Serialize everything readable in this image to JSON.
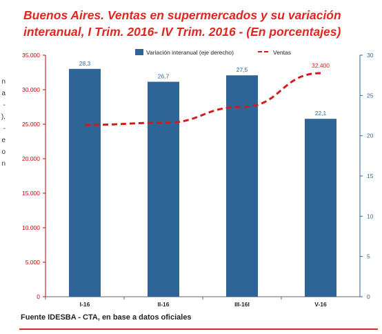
{
  "title": {
    "line1": "Buenos Aires. Ventas en supermercados y su variación",
    "line2": "interanual, I Trim. 2016- IV Trim. 2016 - (En porcentajes)"
  },
  "side_text_fragments": [
    "n",
    "a",
    "-",
    "),",
    "-",
    "e",
    "o",
    "n"
  ],
  "source": "Fuente IDESBA - CTA, en base a datos oficiales",
  "colors": {
    "title": "#e0261f",
    "bars": "#2e6596",
    "ventas_line": "#d7191c",
    "left_axis": "#cc0000",
    "right_axis": "#2e6596",
    "rule": "#e0261f"
  },
  "chart_data": {
    "type": "bar",
    "categories": [
      "I-16",
      "II-16",
      "III-16I",
      "V-16"
    ],
    "series": [
      {
        "name": "Variación interanual (eje derecho)",
        "type": "bar",
        "axis": "right",
        "values": [
          28.3,
          26.7,
          27.5,
          22.1
        ],
        "labels": [
          "28,3",
          "26,7",
          "27,5",
          "22,1"
        ]
      },
      {
        "name": "Ventas",
        "type": "line",
        "style": "dashed",
        "axis": "left",
        "values": [
          24900,
          25200,
          27500,
          32400
        ],
        "labels": [
          "",
          "",
          "",
          "32.400"
        ]
      }
    ],
    "left_axis": {
      "range": [
        0,
        35000
      ],
      "ticks": [
        0,
        5000,
        10000,
        15000,
        20000,
        25000,
        30000,
        35000
      ],
      "tick_labels": [
        "0",
        "5.000",
        "10.000",
        "15.000",
        "20.000",
        "25.000",
        "30.000",
        "35.000"
      ]
    },
    "right_axis": {
      "range": [
        0,
        30
      ],
      "ticks": [
        0,
        5,
        10,
        15,
        20,
        25,
        30
      ],
      "tick_labels": [
        "0",
        "5",
        "10",
        "15",
        "20",
        "25",
        "30"
      ]
    },
    "legend": {
      "position": "top",
      "entries": [
        "Variación interanual (eje derecho)",
        "Ventas"
      ]
    },
    "grid": false
  }
}
